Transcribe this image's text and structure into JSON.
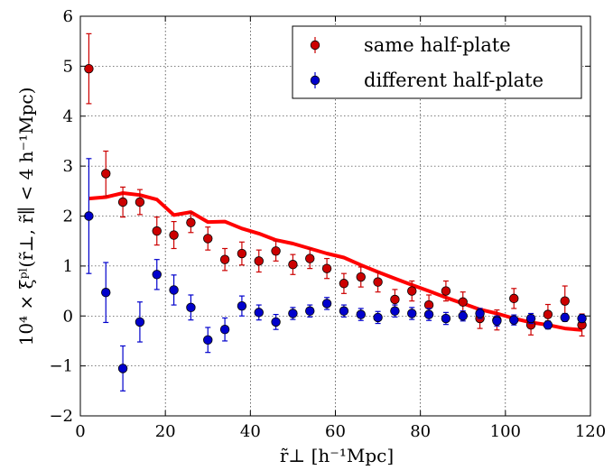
{
  "chart_data": {
    "type": "scatter",
    "xlabel": "r̃⊥ [h⁻¹Mpc]",
    "ylabel": "10⁴ × ξᵖˡ(r̃⊥, r̃∥ < 4 h⁻¹Mpc)",
    "xlim": [
      0,
      120
    ],
    "ylim": [
      -2,
      6
    ],
    "xticks": [
      0,
      20,
      40,
      60,
      80,
      100,
      120
    ],
    "yticks": [
      -2,
      -1,
      0,
      1,
      2,
      3,
      4,
      5,
      6
    ],
    "grid": true,
    "legend_position": "top-right",
    "series": [
      {
        "name": "same half-plate",
        "kind": "points-with-errorbars",
        "color": "#cc0000",
        "edge_color": "#000000",
        "x": [
          2,
          6,
          10,
          14,
          18,
          22,
          26,
          30,
          34,
          38,
          42,
          46,
          50,
          54,
          58,
          62,
          66,
          70,
          74,
          78,
          82,
          86,
          90,
          94,
          98,
          102,
          106,
          110,
          114,
          118
        ],
        "y": [
          4.95,
          2.85,
          2.28,
          2.28,
          1.7,
          1.62,
          1.87,
          1.55,
          1.13,
          1.25,
          1.1,
          1.3,
          1.03,
          1.15,
          0.95,
          0.65,
          0.78,
          0.68,
          0.33,
          0.5,
          0.22,
          0.5,
          0.28,
          -0.05,
          -0.08,
          0.35,
          -0.18,
          0.03,
          0.3,
          -0.18
        ],
        "err": [
          0.7,
          0.45,
          0.3,
          0.25,
          0.28,
          0.27,
          0.2,
          0.23,
          0.22,
          0.23,
          0.22,
          0.2,
          0.2,
          0.2,
          0.2,
          0.2,
          0.2,
          0.2,
          0.2,
          0.2,
          0.2,
          0.2,
          0.2,
          0.2,
          0.2,
          0.2,
          0.2,
          0.2,
          0.3,
          0.22
        ]
      },
      {
        "name": "different half-plate",
        "kind": "points-with-errorbars",
        "color": "#0000cc",
        "edge_color": "#000000",
        "x": [
          2,
          6,
          10,
          14,
          18,
          22,
          26,
          30,
          34,
          38,
          42,
          46,
          50,
          54,
          58,
          62,
          66,
          70,
          74,
          78,
          82,
          86,
          90,
          94,
          98,
          102,
          106,
          110,
          114,
          118
        ],
        "y": [
          2.0,
          0.47,
          -1.05,
          -0.12,
          0.83,
          0.52,
          0.17,
          -0.48,
          -0.27,
          0.2,
          0.07,
          -0.12,
          0.05,
          0.1,
          0.25,
          0.1,
          0.03,
          -0.03,
          0.1,
          0.05,
          0.03,
          -0.05,
          0.0,
          0.05,
          -0.1,
          -0.08,
          -0.05,
          -0.18,
          -0.03,
          -0.05
        ],
        "err": [
          1.15,
          0.6,
          0.45,
          0.4,
          0.3,
          0.3,
          0.25,
          0.25,
          0.23,
          0.2,
          0.15,
          0.15,
          0.12,
          0.12,
          0.12,
          0.12,
          0.12,
          0.12,
          0.12,
          0.12,
          0.12,
          0.12,
          0.1,
          0.1,
          0.1,
          0.1,
          0.1,
          0.08,
          0.08,
          0.08
        ]
      },
      {
        "kind": "line",
        "color": "#ff0000",
        "x": [
          2,
          6,
          10,
          14,
          18,
          22,
          26,
          30,
          34,
          38,
          42,
          46,
          50,
          54,
          58,
          62,
          66,
          70,
          74,
          78,
          82,
          86,
          90,
          94,
          98,
          102,
          106,
          110,
          114,
          118
        ],
        "y": [
          2.35,
          2.38,
          2.46,
          2.42,
          2.33,
          2.02,
          2.08,
          1.88,
          1.89,
          1.75,
          1.65,
          1.52,
          1.45,
          1.35,
          1.25,
          1.17,
          1.02,
          0.88,
          0.75,
          0.62,
          0.5,
          0.37,
          0.25,
          0.13,
          0.05,
          -0.05,
          -0.13,
          -0.18,
          -0.25,
          -0.28
        ]
      }
    ]
  }
}
